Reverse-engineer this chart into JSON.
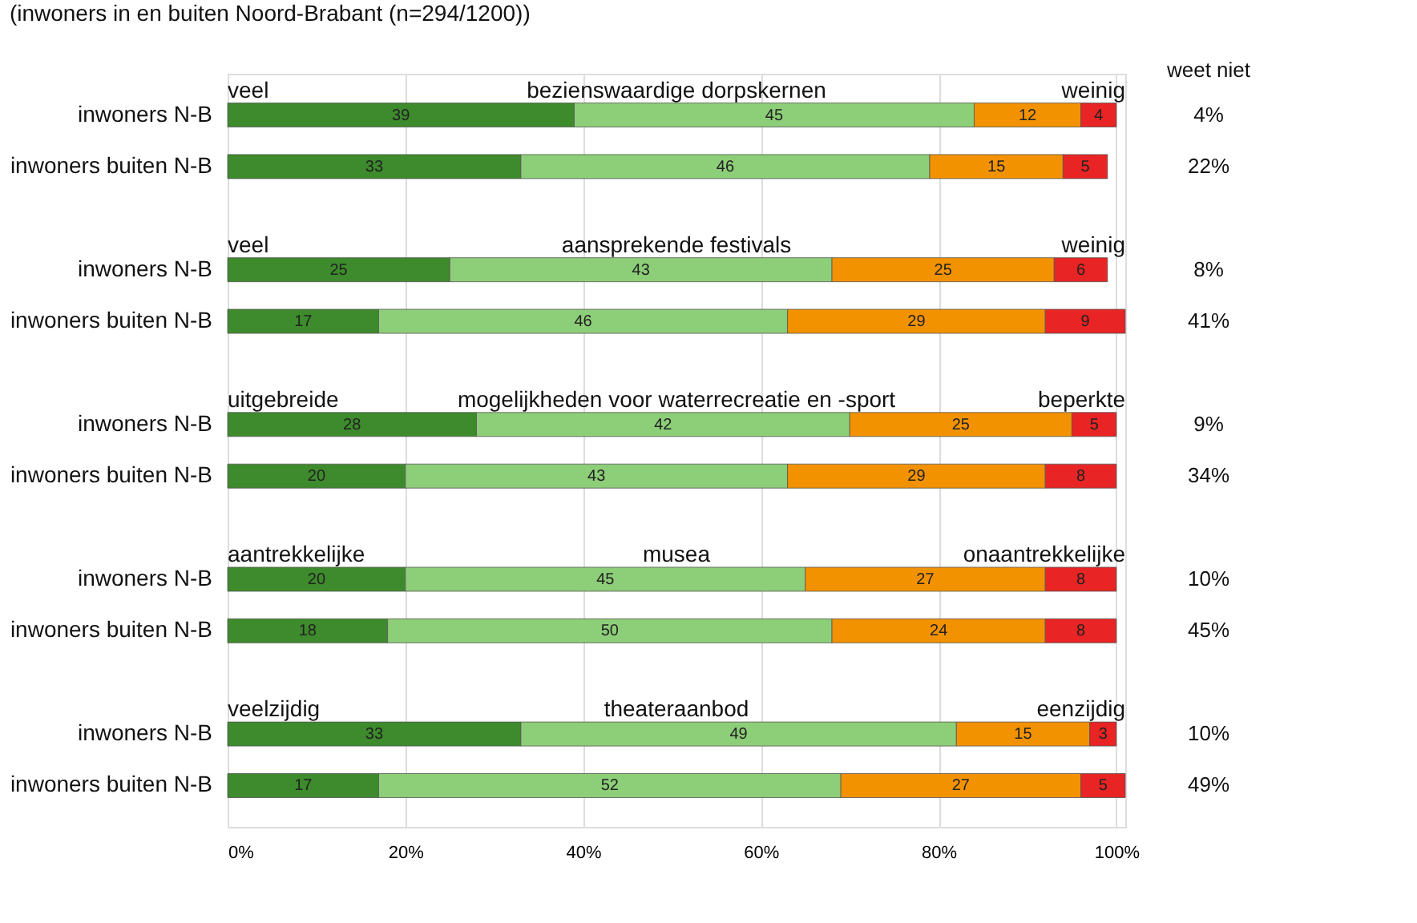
{
  "chart_data": {
    "type": "bar",
    "orientation": "horizontal",
    "stacked": true,
    "subtitle": "(inwoners in en buiten Noord-Brabant (n=294/1200))",
    "categories": [
      "inwoners N-B",
      "inwoners buiten N-B",
      "inwoners N-B",
      "inwoners buiten N-B",
      "inwoners N-B",
      "inwoners buiten N-B",
      "inwoners N-B",
      "inwoners buiten N-B",
      "inwoners N-B",
      "inwoners buiten N-B"
    ],
    "series": [
      {
        "color": "#3d8b2c",
        "values": [
          39,
          33,
          25,
          17,
          28,
          20,
          20,
          18,
          33,
          17
        ]
      },
      {
        "color": "#8dce78",
        "values": [
          45,
          46,
          43,
          46,
          42,
          43,
          45,
          50,
          49,
          52
        ]
      },
      {
        "color": "#f39200",
        "values": [
          12,
          15,
          25,
          29,
          25,
          29,
          27,
          24,
          15,
          27
        ]
      },
      {
        "color": "#e82424",
        "values": [
          4,
          5,
          6,
          9,
          5,
          8,
          8,
          8,
          3,
          5
        ]
      }
    ],
    "data_labels": true,
    "annotations": [
      "veel",
      "bezienswaardige dorpskernen",
      "weinig",
      "veel",
      "aansprekende festivals",
      "weinig",
      "uitgebreide",
      "mogelijkheden voor waterrecreatie en -sport",
      "beperkte",
      "aantrekkelijke",
      "musea",
      "onaantrekkelijke",
      "veelzijdig",
      "theateraanbod",
      "eenzijdig",
      "weet  niet",
      "4%",
      "22%",
      "8%",
      "41%",
      "9%",
      "34%",
      "10%",
      "45%",
      "10%",
      "49%"
    ],
    "xlim": [
      0,
      101
    ],
    "xticks": [
      {
        "value": 0,
        "label": "0%"
      },
      {
        "value": 20,
        "label": "20%"
      },
      {
        "value": 40,
        "label": "40%"
      },
      {
        "value": 60,
        "label": "60%"
      },
      {
        "value": 80,
        "label": "80%"
      },
      {
        "value": 100,
        "label": "100%"
      }
    ],
    "grid": "x",
    "legend": false
  }
}
